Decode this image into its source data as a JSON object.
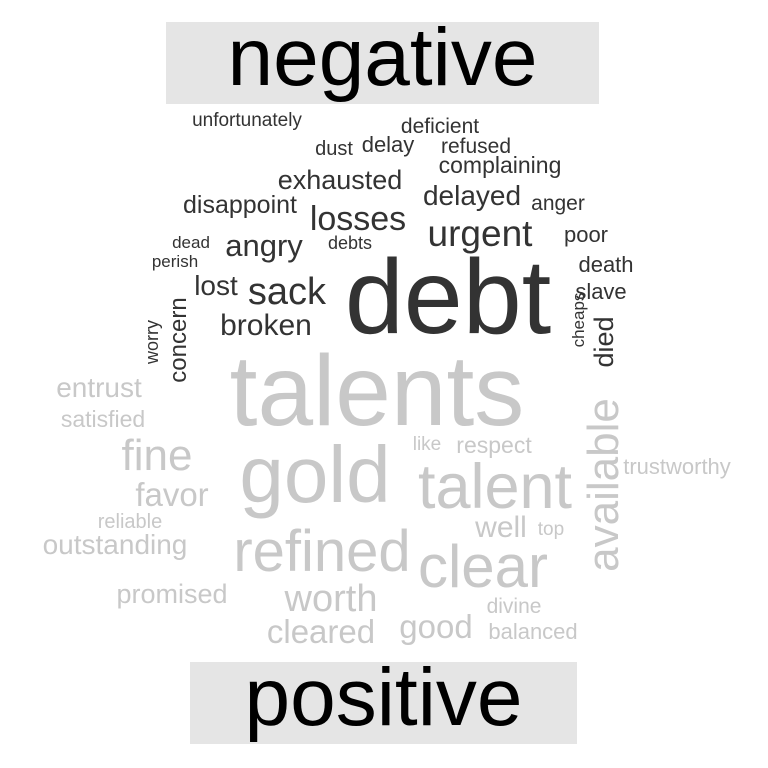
{
  "chart_data": {
    "type": "wordcloud",
    "title": "",
    "groups": [
      {
        "name": "negative",
        "color": "#333333",
        "words": [
          {
            "text": "debt",
            "size": 1.0
          },
          {
            "text": "urgent",
            "size": 0.36
          },
          {
            "text": "losses",
            "size": 0.35
          },
          {
            "text": "sack",
            "size": 0.36
          },
          {
            "text": "broken",
            "size": 0.3
          },
          {
            "text": "angry",
            "size": 0.3
          },
          {
            "text": "delayed",
            "size": 0.28
          },
          {
            "text": "exhausted",
            "size": 0.27
          },
          {
            "text": "disappoint",
            "size": 0.25
          },
          {
            "text": "lost",
            "size": 0.27
          },
          {
            "text": "concern",
            "size": 0.26
          },
          {
            "text": "died",
            "size": 0.27
          },
          {
            "text": "complaining",
            "size": 0.24
          },
          {
            "text": "delay",
            "size": 0.22
          },
          {
            "text": "deficient",
            "size": 0.21
          },
          {
            "text": "refused",
            "size": 0.21
          },
          {
            "text": "dust",
            "size": 0.2
          },
          {
            "text": "unfortunately",
            "size": 0.19
          },
          {
            "text": "anger",
            "size": 0.21
          },
          {
            "text": "poor",
            "size": 0.21
          },
          {
            "text": "death",
            "size": 0.22
          },
          {
            "text": "slave",
            "size": 0.22
          },
          {
            "text": "cheaps",
            "size": 0.17
          },
          {
            "text": "debts",
            "size": 0.18
          },
          {
            "text": "dead",
            "size": 0.17
          },
          {
            "text": "perish",
            "size": 0.17
          },
          {
            "text": "worry",
            "size": 0.18
          }
        ]
      },
      {
        "name": "positive",
        "color": "#c8c8c8",
        "words": [
          {
            "text": "talents",
            "size": 1.0
          },
          {
            "text": "gold",
            "size": 0.8
          },
          {
            "text": "talent",
            "size": 0.62
          },
          {
            "text": "refined",
            "size": 0.6
          },
          {
            "text": "clear",
            "size": 0.6
          },
          {
            "text": "available",
            "size": 0.46
          },
          {
            "text": "fine",
            "size": 0.44
          },
          {
            "text": "worth",
            "size": 0.38
          },
          {
            "text": "cleared",
            "size": 0.33
          },
          {
            "text": "good",
            "size": 0.33
          },
          {
            "text": "favor",
            "size": 0.33
          },
          {
            "text": "well",
            "size": 0.3
          },
          {
            "text": "outstanding",
            "size": 0.28
          },
          {
            "text": "entrust",
            "size": 0.28
          },
          {
            "text": "promised",
            "size": 0.27
          },
          {
            "text": "respect",
            "size": 0.23
          },
          {
            "text": "satisfied",
            "size": 0.23
          },
          {
            "text": "trustworthy",
            "size": 0.22
          },
          {
            "text": "balanced",
            "size": 0.22
          },
          {
            "text": "divine",
            "size": 0.21
          },
          {
            "text": "reliable",
            "size": 0.21
          },
          {
            "text": "top",
            "size": 0.19
          },
          {
            "text": "like",
            "size": 0.19
          }
        ]
      }
    ]
  }
}
